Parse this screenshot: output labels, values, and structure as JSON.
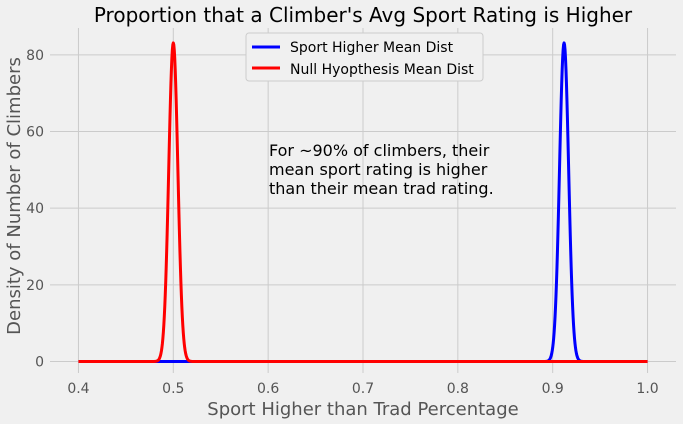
{
  "chart_data": {
    "type": "line",
    "title": "Proportion that a Climber's Avg Sport Rating is Higher",
    "xlabel": "Sport Higher than Trad Percentage",
    "ylabel": "Density of Number of Climbers",
    "xlim": [
      0.37,
      1.03
    ],
    "ylim": [
      -3,
      87
    ],
    "xticks": [
      "0.4",
      "0.5",
      "0.6",
      "0.7",
      "0.8",
      "0.9",
      "1.0"
    ],
    "xtick_values": [
      0.4,
      0.5,
      0.6,
      0.7,
      0.8,
      0.9,
      1.0
    ],
    "yticks": [
      "0",
      "20",
      "40",
      "60",
      "80"
    ],
    "ytick_values": [
      0,
      20,
      40,
      60,
      80
    ],
    "grid": true,
    "legend_position": "top-center",
    "series": [
      {
        "name": "Sport Higher Mean Dist",
        "color": "#0000ff",
        "distribution": "normal",
        "mean": 0.912,
        "sd": 0.0048,
        "x_range": [
          0.4,
          1.0
        ]
      },
      {
        "name": "Null Hyopthesis Mean Dist",
        "color": "#ff0000",
        "distribution": "normal",
        "mean": 0.5,
        "sd": 0.0048,
        "x_range": [
          0.4,
          1.0
        ]
      }
    ],
    "annotation": {
      "lines": [
        "For ~90% of climbers, their",
        "mean sport rating is higher",
        "than their mean trad rating."
      ],
      "x": 0.6,
      "y": 55
    }
  }
}
